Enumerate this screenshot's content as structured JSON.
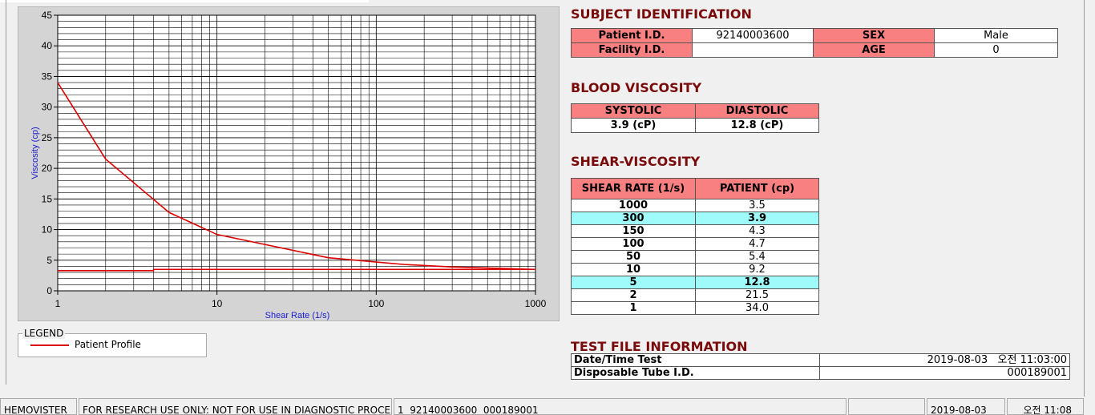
{
  "chart_data": {
    "type": "line",
    "x_label": "Shear Rate (1/s)",
    "y_label": "Viscosity (cp)",
    "xlim": [
      1,
      1000
    ],
    "xticks": [
      1,
      10,
      100,
      1000
    ],
    "log_x": true,
    "ylim": [
      0,
      45
    ],
    "yticks": [
      0,
      5,
      10,
      15,
      20,
      25,
      30,
      35,
      40,
      45
    ],
    "grid": true,
    "series": [
      {
        "name": "Patient Profile",
        "color": "#dd0000",
        "x": [
          1,
          2,
          5,
          10,
          50,
          100,
          150,
          300,
          1000
        ],
        "values": [
          34.0,
          21.5,
          12.8,
          9.2,
          5.4,
          4.7,
          4.3,
          3.9,
          3.5
        ]
      },
      {
        "color": "#dd0000",
        "x": [
          1,
          4,
          4,
          1000
        ],
        "values": [
          3.3,
          3.3,
          3.5,
          3.5
        ]
      }
    ]
  },
  "legend": {
    "title": "LEGEND"
  },
  "subject": {
    "title": "SUBJECT IDENTIFICATION",
    "rows": [
      {
        "label": "Patient I.D.",
        "value": "92140003600",
        "label2": "SEX",
        "value2": "Male"
      },
      {
        "label": "Facility I.D.",
        "label2": "AGE",
        "value2": "0"
      }
    ]
  },
  "blood": {
    "title": "BLOOD VISCOSITY",
    "headers": [
      "SYSTOLIC",
      "DIASTOLIC"
    ],
    "values": [
      "3.9 (cP)",
      "12.8 (cP)"
    ]
  },
  "shear": {
    "title": "SHEAR-VISCOSITY",
    "headers": [
      "SHEAR RATE (1/s)",
      "PATIENT (cp)"
    ],
    "rows": [
      [
        "1000",
        "3.5"
      ],
      [
        "300",
        "3.9"
      ],
      [
        "150",
        "4.3"
      ],
      [
        "100",
        "4.7"
      ],
      [
        "50",
        "5.4"
      ],
      [
        "10",
        "9.2"
      ],
      [
        "5",
        "12.8"
      ],
      [
        "2",
        "21.5"
      ],
      [
        "1",
        "34.0"
      ]
    ]
  },
  "test_file": {
    "title": "TEST FILE INFORMATION",
    "rows": [
      [
        "Date/Time Test",
        "2019-08-03   오전 11:03:00"
      ],
      [
        "Disposable Tube I.D.",
        "000189001"
      ]
    ]
  },
  "status_bar": [
    "HEMOVISTER",
    "FOR RESEARCH USE ONLY: NOT FOR USE IN DIAGNOSTIC PROCEDURES",
    "1  92140003600  000189001",
    "2019-08-03",
    "오전 11:08"
  ]
}
